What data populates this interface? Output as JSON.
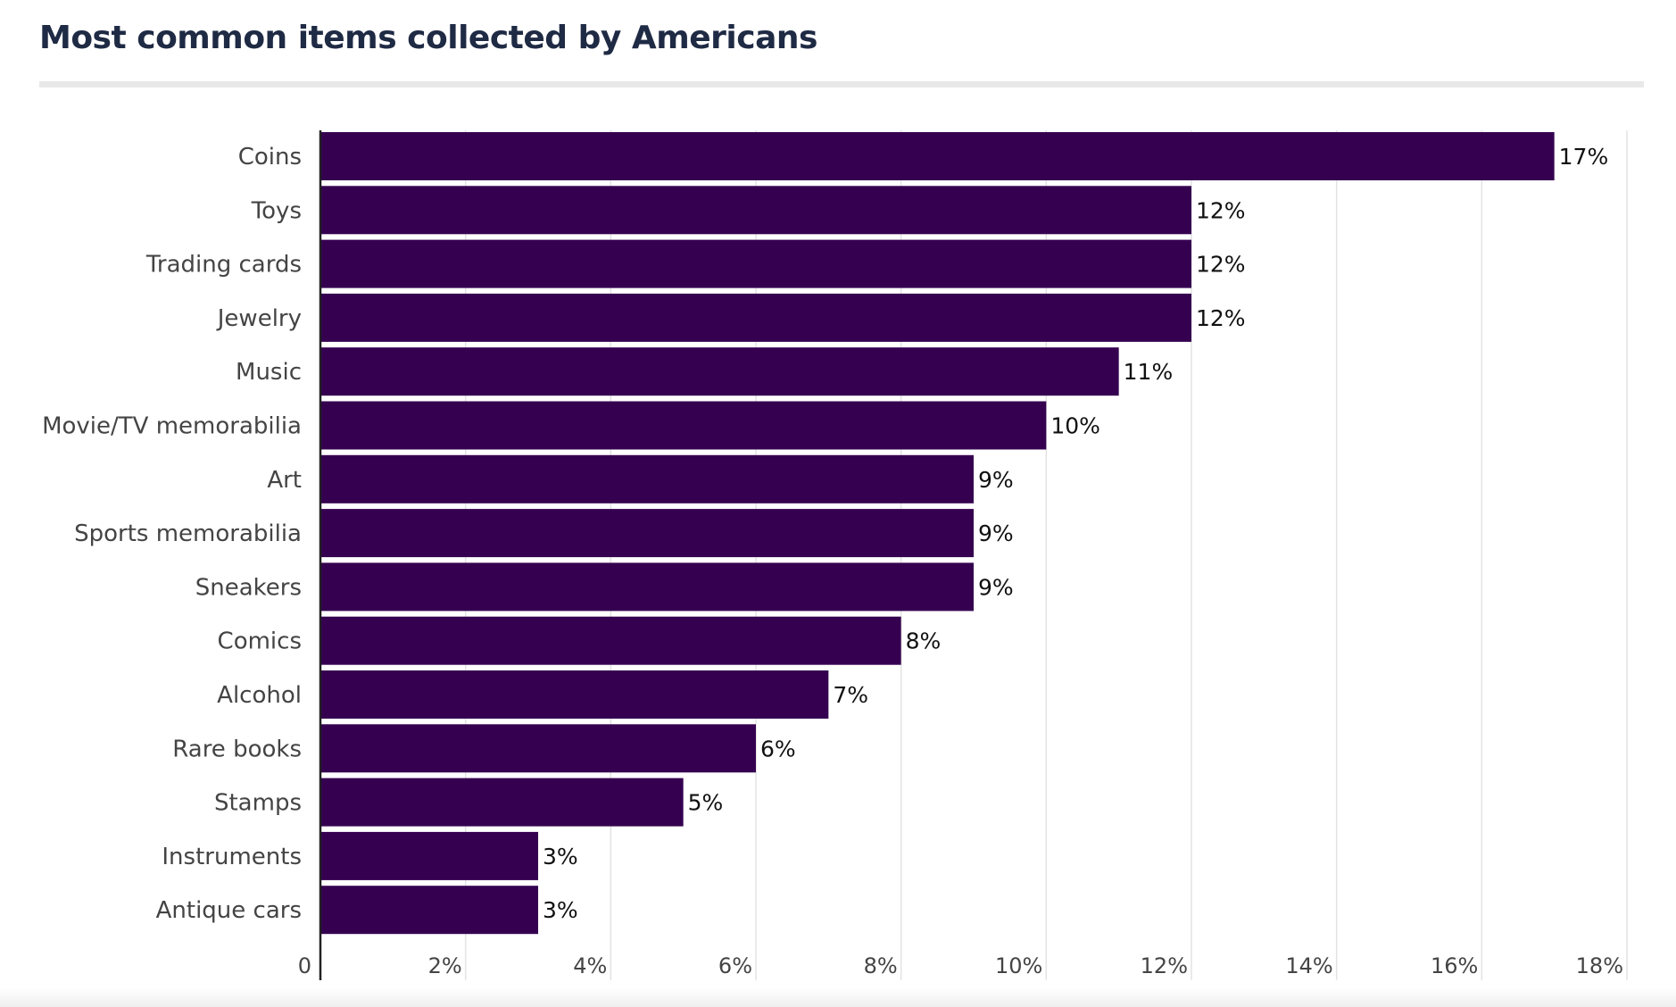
{
  "title": "Most common items collected by Americans",
  "colors": {
    "bar": "#350050",
    "grid": "#e3e3e3",
    "axis": "#222222",
    "label": "#444444",
    "value_label": "#111111"
  },
  "chart_data": {
    "type": "bar",
    "orientation": "horizontal",
    "title": "Most common items collected by Americans",
    "categories": [
      "Coins",
      "Toys",
      "Trading cards",
      "Jewelry",
      "Music",
      "Movie/TV memorabilia",
      "Art",
      "Sports memorabilia",
      "Sneakers",
      "Comics",
      "Alcohol",
      "Rare books",
      "Stamps",
      "Instruments",
      "Antique cars"
    ],
    "values": [
      17,
      12,
      12,
      12,
      11,
      10,
      9,
      9,
      9,
      8,
      7,
      6,
      5,
      3,
      3
    ],
    "value_labels": [
      "17%",
      "12%",
      "12%",
      "12%",
      "11%",
      "10%",
      "9%",
      "9%",
      "9%",
      "8%",
      "7%",
      "6%",
      "5%",
      "3%",
      "3%"
    ],
    "xlim": [
      0,
      18
    ],
    "xticks": [
      0,
      2,
      4,
      6,
      8,
      10,
      12,
      14,
      16,
      18
    ],
    "xtick_labels": [
      "0",
      "2%",
      "4%",
      "6%",
      "8%",
      "10%",
      "12%",
      "14%",
      "16%",
      "18%"
    ],
    "grid": true,
    "legend": "none"
  }
}
